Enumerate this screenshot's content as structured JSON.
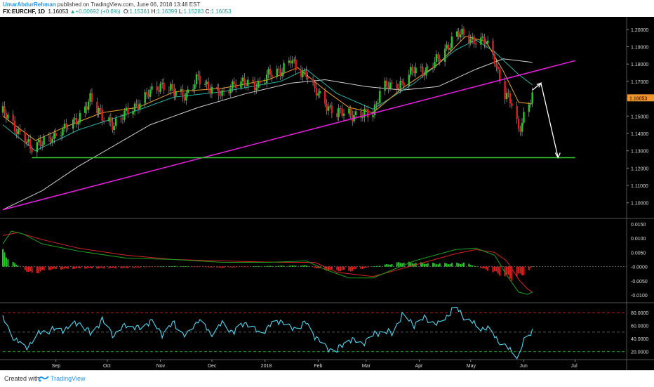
{
  "header": {
    "author": "UmarAbdurRehman",
    "published_text": " published on TradingView.com, June 06, 2018 13:48 EST",
    "symbol": "FX:EURCHF, 1D",
    "last": "1.16053",
    "arrow": "▲",
    "change": "+0.00692 (+0.6%)",
    "o_label": "O:",
    "o_value": "1.15361",
    "h_label": "H:",
    "h_value": "1.16399",
    "l_label": "L:",
    "l_value": "1.15283",
    "c_label": "C:",
    "c_value": "1.16053"
  },
  "colors": {
    "background": "#000000",
    "bull": "#26c926",
    "bear": "#e01e1e",
    "trendline": "#e91ee3",
    "support": "#2ecc2e",
    "forecast_arrow": "#ffffff",
    "ma_fast": "#e8a12a",
    "ma_mid": "#25b5a6",
    "ma_slow": "#cfcfcf",
    "macd": "#18a01a",
    "signal": "#d42424",
    "rsi": "#4fd6f2",
    "last_price_tag": "#f0952c"
  },
  "chart_data": [
    {
      "type": "candlestick",
      "name": "EURCHF",
      "ylim": [
        1.093,
        1.204
      ],
      "y_ticks": [
        "1.20000",
        "1.19000",
        "1.18000",
        "1.17000",
        "1.16000",
        "1.15000",
        "1.14000",
        "1.13000",
        "1.12000",
        "1.11000",
        "1.10000"
      ],
      "last_price_label": "1.16053",
      "x_ticks": [
        "Sep",
        "Oct",
        "Nov",
        "Dec",
        "2018",
        "Feb",
        "Mar",
        "Apr",
        "May",
        "Jun",
        "Jul"
      ],
      "x_tick_dates": [
        "2017-09-01",
        "2017-10-01",
        "2017-11-01",
        "2017-12-01",
        "2018-01-01",
        "2018-02-01",
        "2018-03-01",
        "2018-04-01",
        "2018-05-01",
        "2018-06-01",
        "2018-07-01"
      ],
      "x_range": [
        "2017-08-01",
        "2018-07-31"
      ],
      "close_path": [
        [
          "2017-08-01",
          1.152
        ],
        [
          "2017-08-08",
          1.144
        ],
        [
          "2017-08-14",
          1.137
        ],
        [
          "2017-08-17",
          1.13
        ],
        [
          "2017-08-24",
          1.137
        ],
        [
          "2017-08-31",
          1.136
        ],
        [
          "2017-09-07",
          1.146
        ],
        [
          "2017-09-14",
          1.146
        ],
        [
          "2017-09-21",
          1.162
        ],
        [
          "2017-09-28",
          1.148
        ],
        [
          "2017-10-05",
          1.146
        ],
        [
          "2017-10-12",
          1.151
        ],
        [
          "2017-10-19",
          1.158
        ],
        [
          "2017-10-26",
          1.163
        ],
        [
          "2017-11-02",
          1.169
        ],
        [
          "2017-11-09",
          1.163
        ],
        [
          "2017-11-16",
          1.163
        ],
        [
          "2017-11-23",
          1.171
        ],
        [
          "2017-11-30",
          1.167
        ],
        [
          "2017-12-07",
          1.161
        ],
        [
          "2017-12-14",
          1.17
        ],
        [
          "2017-12-21",
          1.168
        ],
        [
          "2017-12-28",
          1.169
        ],
        [
          "2018-01-03",
          1.173
        ],
        [
          "2018-01-10",
          1.177
        ],
        [
          "2018-01-16",
          1.182
        ],
        [
          "2018-01-20",
          1.175
        ],
        [
          "2018-01-25",
          1.176
        ],
        [
          "2018-01-30",
          1.164
        ],
        [
          "2018-02-05",
          1.158
        ],
        [
          "2018-02-12",
          1.151
        ],
        [
          "2018-02-19",
          1.152
        ],
        [
          "2018-02-26",
          1.15
        ],
        [
          "2018-03-05",
          1.152
        ],
        [
          "2018-03-10",
          1.168
        ],
        [
          "2018-03-16",
          1.166
        ],
        [
          "2018-03-22",
          1.17
        ],
        [
          "2018-03-29",
          1.176
        ],
        [
          "2018-04-05",
          1.177
        ],
        [
          "2018-04-12",
          1.182
        ],
        [
          "2018-04-17",
          1.19
        ],
        [
          "2018-04-22",
          1.197
        ],
        [
          "2018-04-28",
          1.196
        ],
        [
          "2018-05-04",
          1.194
        ],
        [
          "2018-05-10",
          1.192
        ],
        [
          "2018-05-15",
          1.184
        ],
        [
          "2018-05-20",
          1.163
        ],
        [
          "2018-05-25",
          1.157
        ],
        [
          "2018-05-29",
          1.143
        ],
        [
          "2018-06-01",
          1.15
        ],
        [
          "2018-06-06",
          1.161
        ]
      ],
      "ma_fast_path": [
        [
          "2017-08-01",
          1.15
        ],
        [
          "2017-08-20",
          1.136
        ],
        [
          "2017-09-07",
          1.144
        ],
        [
          "2017-09-28",
          1.152
        ],
        [
          "2017-10-19",
          1.155
        ],
        [
          "2017-11-09",
          1.164
        ],
        [
          "2017-12-07",
          1.166
        ],
        [
          "2018-01-03",
          1.171
        ],
        [
          "2018-01-20",
          1.178
        ],
        [
          "2018-02-05",
          1.165
        ],
        [
          "2018-02-19",
          1.155
        ],
        [
          "2018-03-05",
          1.152
        ],
        [
          "2018-03-22",
          1.166
        ],
        [
          "2018-04-12",
          1.18
        ],
        [
          "2018-04-28",
          1.196
        ],
        [
          "2018-05-10",
          1.193
        ],
        [
          "2018-05-20",
          1.176
        ],
        [
          "2018-05-29",
          1.158
        ],
        [
          "2018-06-06",
          1.157
        ]
      ],
      "ma_mid_path": [
        [
          "2017-08-01",
          1.145
        ],
        [
          "2017-08-20",
          1.13
        ],
        [
          "2017-09-14",
          1.142
        ],
        [
          "2017-10-12",
          1.151
        ],
        [
          "2017-11-09",
          1.161
        ],
        [
          "2017-12-07",
          1.164
        ],
        [
          "2018-01-10",
          1.17
        ],
        [
          "2018-01-25",
          1.177
        ],
        [
          "2018-02-12",
          1.163
        ],
        [
          "2018-03-05",
          1.154
        ],
        [
          "2018-03-29",
          1.169
        ],
        [
          "2018-04-22",
          1.188
        ],
        [
          "2018-05-04",
          1.194
        ],
        [
          "2018-05-15",
          1.187
        ],
        [
          "2018-05-29",
          1.174
        ],
        [
          "2018-06-06",
          1.168
        ]
      ],
      "ma_slow_path": [
        [
          "2017-08-01",
          1.096
        ],
        [
          "2017-08-24",
          1.107
        ],
        [
          "2017-09-14",
          1.121
        ],
        [
          "2017-10-05",
          1.133
        ],
        [
          "2017-10-26",
          1.145
        ],
        [
          "2017-11-23",
          1.155
        ],
        [
          "2017-12-21",
          1.163
        ],
        [
          "2018-01-16",
          1.169
        ],
        [
          "2018-02-05",
          1.171
        ],
        [
          "2018-03-01",
          1.167
        ],
        [
          "2018-03-22",
          1.165
        ],
        [
          "2018-04-12",
          1.167
        ],
        [
          "2018-05-04",
          1.177
        ],
        [
          "2018-05-20",
          1.183
        ],
        [
          "2018-06-06",
          1.181
        ]
      ],
      "trendline": [
        [
          "2017-08-01",
          1.096
        ],
        [
          "2018-07-01",
          1.182
        ]
      ],
      "support_line": [
        [
          "2017-08-18",
          1.126
        ],
        [
          "2018-07-01",
          1.126
        ]
      ],
      "forecast_arrow": [
        [
          "2018-06-06",
          1.165
        ],
        [
          "2018-06-11",
          1.169
        ],
        [
          "2018-06-21",
          1.126
        ]
      ]
    },
    {
      "type": "macd",
      "ylim": [
        -0.0115,
        0.016
      ],
      "y_ticks": [
        "0.0150",
        "0.0100",
        "0.0050",
        "-0.0000",
        "-0.0050",
        "-0.0100"
      ],
      "zero_label": "-0.0000",
      "macd_path": [
        [
          "2017-08-01",
          0.008
        ],
        [
          "2017-08-06",
          0.0125
        ],
        [
          "2017-08-13",
          0.0115
        ],
        [
          "2017-08-24",
          0.008
        ],
        [
          "2017-09-14",
          0.0055
        ],
        [
          "2017-10-12",
          0.003
        ],
        [
          "2017-11-09",
          0.0025
        ],
        [
          "2017-12-07",
          0.0015
        ],
        [
          "2018-01-03",
          0.0015
        ],
        [
          "2018-01-25",
          0.002
        ],
        [
          "2018-02-05",
          -0.001
        ],
        [
          "2018-02-19",
          -0.004
        ],
        [
          "2018-03-05",
          -0.004
        ],
        [
          "2018-03-29",
          0.002
        ],
        [
          "2018-04-22",
          0.006
        ],
        [
          "2018-05-04",
          0.0065
        ],
        [
          "2018-05-15",
          0.004
        ],
        [
          "2018-05-22",
          -0.003
        ],
        [
          "2018-05-29",
          -0.009
        ],
        [
          "2018-06-03",
          -0.0098
        ],
        [
          "2018-06-06",
          -0.009
        ]
      ],
      "signal_path": [
        [
          "2017-08-01",
          0.011
        ],
        [
          "2017-08-10",
          0.012
        ],
        [
          "2017-08-24",
          0.0095
        ],
        [
          "2017-09-14",
          0.0065
        ],
        [
          "2017-10-12",
          0.004
        ],
        [
          "2017-11-09",
          0.0025
        ],
        [
          "2017-12-07",
          0.002
        ],
        [
          "2018-01-10",
          0.0015
        ],
        [
          "2018-01-30",
          0.0015
        ],
        [
          "2018-02-12",
          -0.002
        ],
        [
          "2018-03-05",
          -0.0035
        ],
        [
          "2018-03-29",
          0.0005
        ],
        [
          "2018-04-22",
          0.0045
        ],
        [
          "2018-05-04",
          0.006
        ],
        [
          "2018-05-15",
          0.005
        ],
        [
          "2018-05-22",
          0.002
        ],
        [
          "2018-05-29",
          -0.0045
        ],
        [
          "2018-06-03",
          -0.0078
        ],
        [
          "2018-06-06",
          -0.009
        ]
      ],
      "histogram_path": [
        [
          "2017-08-01",
          0.005
        ],
        [
          "2017-08-08",
          0.001
        ],
        [
          "2017-08-18",
          -0.0025
        ],
        [
          "2017-08-28",
          -0.001
        ],
        [
          "2017-09-14",
          -0.0006
        ],
        [
          "2017-10-12",
          -0.0005
        ],
        [
          "2017-11-09",
          0.0002
        ],
        [
          "2017-12-07",
          -0.0004
        ],
        [
          "2018-01-03",
          0.0002
        ],
        [
          "2018-01-25",
          0.0004
        ],
        [
          "2018-02-05",
          -0.0012
        ],
        [
          "2018-02-19",
          -0.0015
        ],
        [
          "2018-03-05",
          0.0
        ],
        [
          "2018-03-22",
          0.0015
        ],
        [
          "2018-04-12",
          0.001
        ],
        [
          "2018-04-28",
          0.0012
        ],
        [
          "2018-05-10",
          -0.001
        ],
        [
          "2018-05-25",
          -0.004
        ],
        [
          "2018-06-03",
          -0.002
        ],
        [
          "2018-06-06",
          0.0001
        ]
      ]
    },
    {
      "type": "line",
      "name": "RSI",
      "ylim": [
        10,
        93
      ],
      "y_ticks": [
        "80.0000",
        "60.0000",
        "40.0000",
        "20.0000"
      ],
      "upper_band": 80,
      "lower_band": 20,
      "mid_band": 50,
      "rsi_path": [
        [
          "2017-08-01",
          70
        ],
        [
          "2017-08-08",
          40
        ],
        [
          "2017-08-14",
          25
        ],
        [
          "2017-08-24",
          52
        ],
        [
          "2017-09-07",
          55
        ],
        [
          "2017-09-14",
          66
        ],
        [
          "2017-09-21",
          48
        ],
        [
          "2017-09-28",
          68
        ],
        [
          "2017-10-05",
          45
        ],
        [
          "2017-10-12",
          62
        ],
        [
          "2017-10-19",
          55
        ],
        [
          "2017-10-26",
          67
        ],
        [
          "2017-11-02",
          48
        ],
        [
          "2017-11-09",
          64
        ],
        [
          "2017-11-16",
          43
        ],
        [
          "2017-11-23",
          70
        ],
        [
          "2017-11-30",
          48
        ],
        [
          "2017-12-07",
          63
        ],
        [
          "2017-12-14",
          50
        ],
        [
          "2017-12-21",
          66
        ],
        [
          "2017-12-28",
          49
        ],
        [
          "2018-01-03",
          58
        ],
        [
          "2018-01-10",
          69
        ],
        [
          "2018-01-16",
          55
        ],
        [
          "2018-01-25",
          64
        ],
        [
          "2018-01-30",
          45
        ],
        [
          "2018-02-05",
          27
        ],
        [
          "2018-02-12",
          22
        ],
        [
          "2018-02-19",
          40
        ],
        [
          "2018-02-26",
          32
        ],
        [
          "2018-03-05",
          45
        ],
        [
          "2018-03-10",
          52
        ],
        [
          "2018-03-16",
          48
        ],
        [
          "2018-03-22",
          76
        ],
        [
          "2018-03-29",
          62
        ],
        [
          "2018-04-05",
          72
        ],
        [
          "2018-04-12",
          61
        ],
        [
          "2018-04-17",
          75
        ],
        [
          "2018-04-22",
          88
        ],
        [
          "2018-04-28",
          72
        ],
        [
          "2018-05-04",
          60
        ],
        [
          "2018-05-10",
          55
        ],
        [
          "2018-05-15",
          45
        ],
        [
          "2018-05-20",
          28
        ],
        [
          "2018-05-25",
          22
        ],
        [
          "2018-05-29",
          13
        ],
        [
          "2018-06-01",
          35
        ],
        [
          "2018-06-06",
          54
        ]
      ]
    }
  ],
  "footer": {
    "created_label": "Created with",
    "brand": "TradingView"
  }
}
